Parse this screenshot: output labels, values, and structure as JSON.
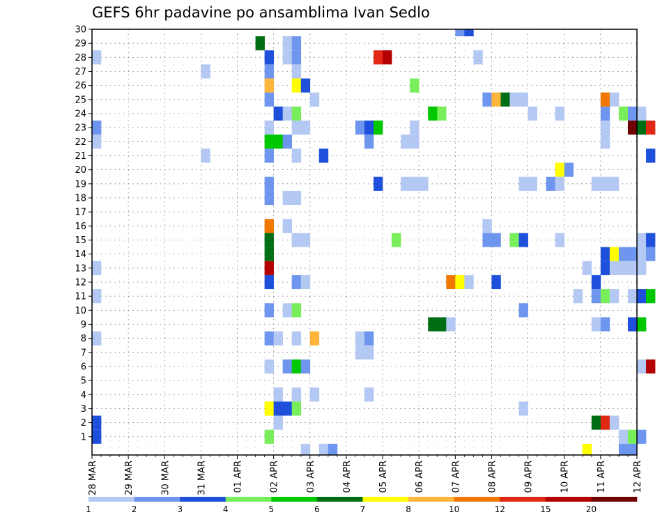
{
  "chart_data": {
    "type": "heatmap",
    "title": "GEFS 6hr padavine po ansamblima Ivan Sedlo",
    "xlabel": "",
    "ylabel": "",
    "ylim": [
      0,
      30
    ],
    "grid": true,
    "x_range": [
      "28 MAR 00Z",
      "12 APR 00Z"
    ],
    "x_step": "6hr",
    "x_tick_labels": [
      "28 MAR",
      "29 MAR",
      "30 MAR",
      "31 MAR",
      "01 APR",
      "02 APR",
      "03 APR",
      "04 APR",
      "05 APR",
      "06 APR",
      "07 APR",
      "08 APR",
      "09 APR",
      "10 APR",
      "11 APR",
      "12 APR"
    ],
    "y_tick_labels": [
      "1",
      "2",
      "3",
      "4",
      "5",
      "6",
      "7",
      "8",
      "9",
      "10",
      "11",
      "12",
      "13",
      "14",
      "15",
      "16",
      "17",
      "18",
      "19",
      "20",
      "21",
      "22",
      "23",
      "24",
      "25",
      "26",
      "27",
      "28",
      "29",
      "30"
    ],
    "colorbar": {
      "labels": [
        "1",
        "2",
        "3",
        "4",
        "5",
        "6",
        "7",
        "8",
        "10",
        "12",
        "15",
        "20"
      ],
      "colors": [
        "#b4c8f4",
        "#6e96ee",
        "#1e50dc",
        "#78ee5a",
        "#00c800",
        "#006e14",
        "#ffff00",
        "#ffb43c",
        "#f07800",
        "#e02814",
        "#b40000",
        "#6e0000"
      ]
    },
    "cells": [
      {
        "member": 28,
        "step": 1,
        "cat": 1
      },
      {
        "member": 23,
        "step": 1,
        "cat": 2
      },
      {
        "member": 22,
        "step": 1,
        "cat": 1
      },
      {
        "member": 13,
        "step": 1,
        "cat": 1
      },
      {
        "member": 11,
        "step": 1,
        "cat": 1
      },
      {
        "member": 8,
        "step": 1,
        "cat": 1
      },
      {
        "member": 2,
        "step": 1,
        "cat": 3
      },
      {
        "member": 1,
        "step": 1,
        "cat": 3
      },
      {
        "member": 27,
        "step": 13,
        "cat": 1
      },
      {
        "member": 21,
        "step": 13,
        "cat": 1
      },
      {
        "member": 29,
        "step": 19,
        "cat": 6
      },
      {
        "member": 28,
        "step": 20,
        "cat": 3
      },
      {
        "member": 27,
        "step": 20,
        "cat": 2
      },
      {
        "member": 26,
        "step": 20,
        "cat": 8
      },
      {
        "member": 25,
        "step": 20,
        "cat": 2
      },
      {
        "member": 23,
        "step": 20,
        "cat": 1
      },
      {
        "member": 22,
        "step": 20,
        "cat": 5
      },
      {
        "member": 21,
        "step": 20,
        "cat": 2
      },
      {
        "member": 19,
        "step": 20,
        "cat": 2
      },
      {
        "member": 18,
        "step": 20,
        "cat": 2
      },
      {
        "member": 16,
        "step": 20,
        "cat": 9
      },
      {
        "member": 15,
        "step": 20,
        "cat": 6
      },
      {
        "member": 14,
        "step": 20,
        "cat": 6
      },
      {
        "member": 13,
        "step": 20,
        "cat": 11
      },
      {
        "member": 12,
        "step": 20,
        "cat": 3
      },
      {
        "member": 10,
        "step": 20,
        "cat": 2
      },
      {
        "member": 8,
        "step": 20,
        "cat": 2
      },
      {
        "member": 6,
        "step": 20,
        "cat": 1
      },
      {
        "member": 3,
        "step": 20,
        "cat": 7
      },
      {
        "member": 1,
        "step": 20,
        "cat": 4
      },
      {
        "member": 24,
        "step": 21,
        "cat": 3
      },
      {
        "member": 22,
        "step": 21,
        "cat": 5
      },
      {
        "member": 8,
        "step": 21,
        "cat": 1
      },
      {
        "member": 4,
        "step": 21,
        "cat": 1
      },
      {
        "member": 3,
        "step": 21,
        "cat": 3
      },
      {
        "member": 2,
        "step": 21,
        "cat": 1
      },
      {
        "member": 29,
        "step": 22,
        "cat": 1
      },
      {
        "member": 28,
        "step": 22,
        "cat": 1
      },
      {
        "member": 24,
        "step": 22,
        "cat": 1
      },
      {
        "member": 22,
        "step": 22,
        "cat": 2
      },
      {
        "member": 18,
        "step": 22,
        "cat": 1
      },
      {
        "member": 16,
        "step": 22,
        "cat": 1
      },
      {
        "member": 10,
        "step": 22,
        "cat": 1
      },
      {
        "member": 6,
        "step": 22,
        "cat": 2
      },
      {
        "member": 3,
        "step": 22,
        "cat": 3
      },
      {
        "member": 29,
        "step": 23,
        "cat": 2
      },
      {
        "member": 28,
        "step": 23,
        "cat": 2
      },
      {
        "member": 27,
        "step": 23,
        "cat": 1
      },
      {
        "member": 26,
        "step": 23,
        "cat": 7
      },
      {
        "member": 24,
        "step": 23,
        "cat": 4
      },
      {
        "member": 23,
        "step": 23,
        "cat": 1
      },
      {
        "member": 21,
        "step": 23,
        "cat": 1
      },
      {
        "member": 18,
        "step": 23,
        "cat": 1
      },
      {
        "member": 15,
        "step": 23,
        "cat": 1
      },
      {
        "member": 12,
        "step": 23,
        "cat": 2
      },
      {
        "member": 10,
        "step": 23,
        "cat": 4
      },
      {
        "member": 8,
        "step": 23,
        "cat": 1
      },
      {
        "member": 6,
        "step": 23,
        "cat": 5
      },
      {
        "member": 4,
        "step": 23,
        "cat": 1
      },
      {
        "member": 3,
        "step": 23,
        "cat": 4
      },
      {
        "member": 26,
        "step": 24,
        "cat": 3
      },
      {
        "member": 23,
        "step": 24,
        "cat": 1
      },
      {
        "member": 15,
        "step": 24,
        "cat": 1
      },
      {
        "member": 12,
        "step": 24,
        "cat": 1
      },
      {
        "member": 6,
        "step": 24,
        "cat": 2
      },
      {
        "member": 0,
        "step": 24,
        "cat": 1
      },
      {
        "member": 25,
        "step": 25,
        "cat": 1
      },
      {
        "member": 8,
        "step": 25,
        "cat": 8
      },
      {
        "member": 4,
        "step": 25,
        "cat": 1
      },
      {
        "member": 21,
        "step": 26,
        "cat": 3
      },
      {
        "member": 0,
        "step": 26,
        "cat": 1
      },
      {
        "member": 0,
        "step": 27,
        "cat": 2
      },
      {
        "member": 23,
        "step": 30,
        "cat": 2
      },
      {
        "member": 8,
        "step": 30,
        "cat": 1
      },
      {
        "member": 7,
        "step": 30,
        "cat": 1
      },
      {
        "member": 23,
        "step": 31,
        "cat": 3
      },
      {
        "member": 22,
        "step": 31,
        "cat": 2
      },
      {
        "member": 8,
        "step": 31,
        "cat": 2
      },
      {
        "member": 7,
        "step": 31,
        "cat": 1
      },
      {
        "member": 4,
        "step": 31,
        "cat": 1
      },
      {
        "member": 28,
        "step": 32,
        "cat": 10
      },
      {
        "member": 23,
        "step": 32,
        "cat": 5
      },
      {
        "member": 19,
        "step": 32,
        "cat": 3
      },
      {
        "member": 28,
        "step": 33,
        "cat": 11
      },
      {
        "member": 15,
        "step": 34,
        "cat": 4
      },
      {
        "member": 22,
        "step": 35,
        "cat": 1
      },
      {
        "member": 19,
        "step": 35,
        "cat": 1
      },
      {
        "member": 26,
        "step": 36,
        "cat": 4
      },
      {
        "member": 23,
        "step": 36,
        "cat": 1
      },
      {
        "member": 22,
        "step": 36,
        "cat": 1
      },
      {
        "member": 19,
        "step": 36,
        "cat": 1
      },
      {
        "member": 19,
        "step": 37,
        "cat": 1
      },
      {
        "member": 9,
        "step": 38,
        "cat": 6
      },
      {
        "member": 24,
        "step": 38,
        "cat": 5
      },
      {
        "member": 9,
        "step": 39,
        "cat": 6
      },
      {
        "member": 24,
        "step": 39,
        "cat": 4
      },
      {
        "member": 9,
        "step": 40,
        "cat": 1
      },
      {
        "member": 12,
        "step": 40,
        "cat": 9
      },
      {
        "member": 30,
        "step": 41,
        "cat": 2
      },
      {
        "member": 12,
        "step": 41,
        "cat": 7
      },
      {
        "member": 30,
        "step": 42,
        "cat": 3
      },
      {
        "member": 12,
        "step": 42,
        "cat": 1
      },
      {
        "member": 28,
        "step": 43,
        "cat": 1
      },
      {
        "member": 25,
        "step": 44,
        "cat": 2
      },
      {
        "member": 16,
        "step": 44,
        "cat": 1
      },
      {
        "member": 15,
        "step": 44,
        "cat": 2
      },
      {
        "member": 25,
        "step": 45,
        "cat": 8
      },
      {
        "member": 15,
        "step": 45,
        "cat": 2
      },
      {
        "member": 12,
        "step": 45,
        "cat": 3
      },
      {
        "member": 25,
        "step": 46,
        "cat": 6
      },
      {
        "member": 25,
        "step": 47,
        "cat": 1
      },
      {
        "member": 15,
        "step": 47,
        "cat": 4
      },
      {
        "member": 25,
        "step": 48,
        "cat": 1
      },
      {
        "member": 15,
        "step": 48,
        "cat": 3
      },
      {
        "member": 19,
        "step": 48,
        "cat": 1
      },
      {
        "member": 10,
        "step": 48,
        "cat": 2
      },
      {
        "member": 3,
        "step": 48,
        "cat": 1
      },
      {
        "member": 24,
        "step": 49,
        "cat": 1
      },
      {
        "member": 19,
        "step": 49,
        "cat": 1
      },
      {
        "member": 19,
        "step": 51,
        "cat": 2
      },
      {
        "member": 24,
        "step": 52,
        "cat": 1
      },
      {
        "member": 20,
        "step": 52,
        "cat": 7
      },
      {
        "member": 15,
        "step": 52,
        "cat": 1
      },
      {
        "member": 19,
        "step": 52,
        "cat": 1
      },
      {
        "member": 20,
        "step": 53,
        "cat": 2
      },
      {
        "member": 11,
        "step": 54,
        "cat": 1
      },
      {
        "member": 13,
        "step": 55,
        "cat": 1
      },
      {
        "member": 0,
        "step": 55,
        "cat": 7
      },
      {
        "member": 19,
        "step": 56,
        "cat": 1
      },
      {
        "member": 12,
        "step": 56,
        "cat": 3
      },
      {
        "member": 11,
        "step": 56,
        "cat": 2
      },
      {
        "member": 9,
        "step": 56,
        "cat": 1
      },
      {
        "member": 2,
        "step": 56,
        "cat": 6
      },
      {
        "member": 25,
        "step": 57,
        "cat": 9
      },
      {
        "member": 24,
        "step": 57,
        "cat": 2
      },
      {
        "member": 23,
        "step": 57,
        "cat": 1
      },
      {
        "member": 22,
        "step": 57,
        "cat": 1
      },
      {
        "member": 19,
        "step": 57,
        "cat": 1
      },
      {
        "member": 14,
        "step": 57,
        "cat": 3
      },
      {
        "member": 13,
        "step": 57,
        "cat": 3
      },
      {
        "member": 11,
        "step": 57,
        "cat": 4
      },
      {
        "member": 9,
        "step": 57,
        "cat": 2
      },
      {
        "member": 2,
        "step": 57,
        "cat": 10
      },
      {
        "member": 25,
        "step": 58,
        "cat": 1
      },
      {
        "member": 19,
        "step": 58,
        "cat": 1
      },
      {
        "member": 14,
        "step": 58,
        "cat": 7
      },
      {
        "member": 13,
        "step": 58,
        "cat": 1
      },
      {
        "member": 11,
        "step": 58,
        "cat": 1
      },
      {
        "member": 2,
        "step": 58,
        "cat": 1
      },
      {
        "member": 24,
        "step": 59,
        "cat": 4
      },
      {
        "member": 14,
        "step": 59,
        "cat": 2
      },
      {
        "member": 13,
        "step": 59,
        "cat": 1
      },
      {
        "member": 1,
        "step": 59,
        "cat": 1
      },
      {
        "member": 0,
        "step": 59,
        "cat": 2
      },
      {
        "member": 24,
        "step": 60,
        "cat": 2
      },
      {
        "member": 23,
        "step": 60,
        "cat": 12
      },
      {
        "member": 14,
        "step": 60,
        "cat": 2
      },
      {
        "member": 13,
        "step": 60,
        "cat": 1
      },
      {
        "member": 11,
        "step": 60,
        "cat": 1
      },
      {
        "member": 9,
        "step": 60,
        "cat": 3
      },
      {
        "member": 1,
        "step": 60,
        "cat": 4
      },
      {
        "member": 0,
        "step": 60,
        "cat": 2
      },
      {
        "member": 24,
        "step": 61,
        "cat": 1
      },
      {
        "member": 23,
        "step": 61,
        "cat": 6
      },
      {
        "member": 15,
        "step": 61,
        "cat": 1
      },
      {
        "member": 14,
        "step": 61,
        "cat": 1
      },
      {
        "member": 13,
        "step": 61,
        "cat": 1
      },
      {
        "member": 11,
        "step": 61,
        "cat": 3
      },
      {
        "member": 9,
        "step": 61,
        "cat": 5
      },
      {
        "member": 6,
        "step": 61,
        "cat": 1
      },
      {
        "member": 1,
        "step": 61,
        "cat": 2
      },
      {
        "member": 23,
        "step": 62,
        "cat": 10
      },
      {
        "member": 21,
        "step": 62,
        "cat": 3
      },
      {
        "member": 15,
        "step": 62,
        "cat": 3
      },
      {
        "member": 14,
        "step": 62,
        "cat": 2
      },
      {
        "member": 11,
        "step": 62,
        "cat": 5
      },
      {
        "member": 6,
        "step": 62,
        "cat": 11
      }
    ]
  }
}
